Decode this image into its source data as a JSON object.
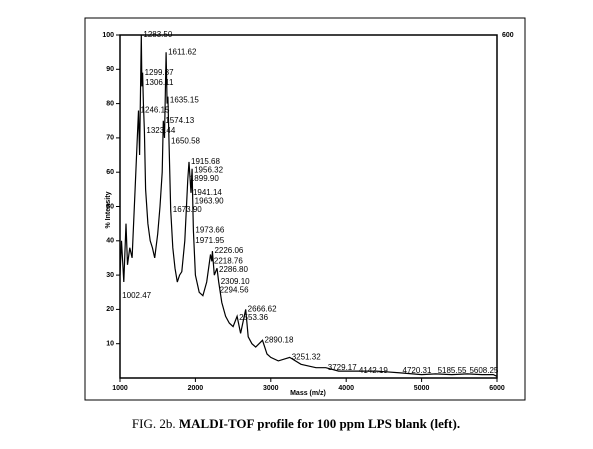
{
  "chart_data": {
    "type": "line",
    "x_label": "Mass (m/z)",
    "y_label": "% Intensity",
    "corner_label": "600",
    "color": "#000000",
    "xlim": [
      1000,
      6000
    ],
    "xticks": [
      1000,
      2000,
      3000,
      4000,
      5000,
      6000
    ],
    "ylim": [
      0,
      100
    ],
    "yticks": [
      10,
      20,
      30,
      40,
      50,
      60,
      70,
      80,
      90,
      100
    ],
    "x": [
      1000,
      1020,
      1050,
      1080,
      1100,
      1130,
      1160,
      1200,
      1230,
      1246,
      1260,
      1283,
      1290,
      1300,
      1310,
      1323,
      1340,
      1370,
      1400,
      1430,
      1460,
      1500,
      1530,
      1560,
      1574,
      1590,
      1611,
      1625,
      1635,
      1650,
      1673,
      1700,
      1730,
      1760,
      1790,
      1820,
      1860,
      1899,
      1915,
      1941,
      1956,
      1964,
      1974,
      2000,
      2050,
      2100,
      2150,
      2200,
      2219,
      2226,
      2250,
      2287,
      2309,
      2350,
      2400,
      2450,
      2500,
      2553,
      2600,
      2667,
      2700,
      2750,
      2800,
      2890,
      2950,
      3000,
      3100,
      3251,
      3400,
      3600,
      3729,
      3900,
      4142,
      4400,
      4720,
      5000,
      5186,
      5400,
      5608,
      5800,
      5950,
      6000
    ],
    "values": [
      30,
      40,
      28,
      45,
      33,
      38,
      35,
      55,
      70,
      78,
      65,
      100,
      85,
      89,
      80,
      72,
      55,
      45,
      40,
      38,
      35,
      42,
      50,
      60,
      75,
      70,
      95,
      80,
      82,
      69,
      49,
      38,
      32,
      28,
      30,
      31,
      40,
      58,
      63,
      54,
      61,
      52,
      43,
      30,
      25,
      24,
      28,
      36,
      34,
      37,
      30,
      32,
      28,
      22,
      18,
      16,
      15,
      18,
      13,
      20,
      12,
      10,
      9,
      11,
      7,
      6,
      5,
      6,
      4,
      3,
      3,
      2,
      2,
      2,
      1.5,
      1,
      1.2,
      1,
      1.2,
      1,
      1,
      0.5
    ],
    "annotations": [
      {
        "x": 1283.5,
        "y": 100,
        "text": "1283.50"
      },
      {
        "x": 1611.62,
        "y": 95,
        "text": "1611.62"
      },
      {
        "x": 1299.87,
        "y": 89,
        "text": "1299.87"
      },
      {
        "x": 1306.11,
        "y": 86,
        "text": "1306.11"
      },
      {
        "x": 1635.15,
        "y": 81,
        "text": "1635.15"
      },
      {
        "x": 1246.15,
        "y": 78,
        "text": "1246.15"
      },
      {
        "x": 1574.13,
        "y": 75,
        "text": "1574.13"
      },
      {
        "x": 1323.44,
        "y": 72,
        "text": "1323.44"
      },
      {
        "x": 1650.58,
        "y": 69,
        "text": "1650.58"
      },
      {
        "x": 1915.68,
        "y": 63,
        "text": "1915.68"
      },
      {
        "x": 1956.32,
        "y": 60.5,
        "text": "1956.32"
      },
      {
        "x": 1899.9,
        "y": 58,
        "text": "1899.90"
      },
      {
        "x": 1941.14,
        "y": 54,
        "text": "1941.14"
      },
      {
        "x": 1963.9,
        "y": 51.5,
        "text": "1963.90"
      },
      {
        "x": 1673.9,
        "y": 49,
        "text": "1673.90"
      },
      {
        "x": 1973.66,
        "y": 43,
        "text": "1973.66"
      },
      {
        "x": 1971.95,
        "y": 40,
        "text": "1971.95"
      },
      {
        "x": 2226.06,
        "y": 37,
        "text": "2226.06"
      },
      {
        "x": 2218.76,
        "y": 34,
        "text": "2218.76"
      },
      {
        "x": 2286.8,
        "y": 31.5,
        "text": "2286.80"
      },
      {
        "x": 2309.1,
        "y": 28,
        "text": "2309.10"
      },
      {
        "x": 2294.56,
        "y": 25.5,
        "text": "2294.56"
      },
      {
        "x": 2666.62,
        "y": 20,
        "text": "2666.62"
      },
      {
        "x": 2553.36,
        "y": 17.5,
        "text": "2553.36"
      },
      {
        "x": 2890.18,
        "y": 11,
        "text": "2890.18"
      },
      {
        "x": 3251.32,
        "y": 6,
        "text": "3251.32"
      },
      {
        "x": 3729.17,
        "y": 3,
        "text": "3729.17"
      },
      {
        "x": 4142.19,
        "y": 2,
        "text": "4142.19"
      },
      {
        "x": 4720.31,
        "y": 2,
        "text": "4720.31"
      },
      {
        "x": 5185.55,
        "y": 2,
        "text": "5185.55"
      },
      {
        "x": 5608.25,
        "y": 2,
        "text": "5608.25"
      },
      {
        "x": 1002.47,
        "y": 24,
        "text": "1002.47"
      }
    ]
  },
  "caption": {
    "label": "FIG. 2b.",
    "text": "MALDI-TOF profile for 100 ppm LPS blank (left)."
  }
}
